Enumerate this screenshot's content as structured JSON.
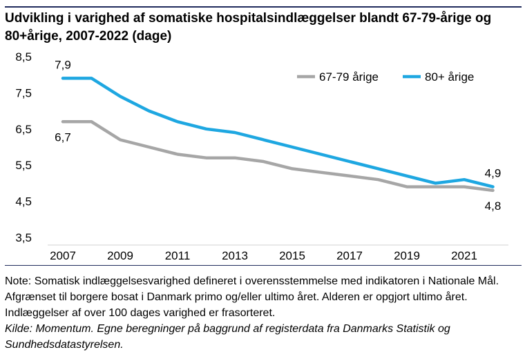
{
  "title": "Udvikling i varighed af somatiske hospitalsindlæggelser blandt 67-79-årige og 80+årige, 2007-2022 (dage)",
  "notes": {
    "note": "Note: Somatisk indlæggelsesvarighed defineret i overensstemmelse med indikatoren i Nationale Mål. Afgrænset til borgere bosat i Danmark primo og/eller ultimo året. Alderen er opgjort ultimo året. Indlæggelser af over 100 dages varighed er frasorteret.",
    "source": "Kilde: Momentum. Egne beregninger på baggrund af registerdata fra Danmarks Statistik og Sundhedsdatastyrelsen."
  },
  "chart_data": {
    "type": "line",
    "title": "Udvikling i varighed af somatiske hospitalsindlæggelser blandt 67-79-årige og 80+årige, 2007-2022 (dage)",
    "xlabel": "",
    "ylabel": "",
    "x": [
      2007,
      2008,
      2009,
      2010,
      2011,
      2012,
      2013,
      2014,
      2015,
      2016,
      2017,
      2018,
      2019,
      2020,
      2021,
      2022
    ],
    "x_tick_labels": [
      "2007",
      "2009",
      "2011",
      "2013",
      "2015",
      "2017",
      "2019",
      "2021"
    ],
    "y_tick_labels": [
      "8,5",
      "7,5",
      "6,5",
      "5,5",
      "4,5",
      "3,5"
    ],
    "ylim": [
      3.5,
      8.5
    ],
    "grid": false,
    "legend_position": "top-right",
    "series": [
      {
        "name": "67-79 årige",
        "color": "#a6a6a6",
        "values": [
          6.7,
          6.7,
          6.2,
          6.0,
          5.8,
          5.7,
          5.7,
          5.6,
          5.4,
          5.3,
          5.2,
          5.1,
          4.9,
          4.9,
          4.9,
          4.8
        ],
        "start_label": "6,7",
        "end_label": "4,8"
      },
      {
        "name": "80+ årige",
        "color": "#1ea7e1",
        "values": [
          7.9,
          7.9,
          7.4,
          7.0,
          6.7,
          6.5,
          6.4,
          6.2,
          6.0,
          5.8,
          5.6,
          5.4,
          5.2,
          5.0,
          5.1,
          4.9
        ],
        "start_label": "7,9",
        "end_label": "4,9"
      }
    ]
  }
}
